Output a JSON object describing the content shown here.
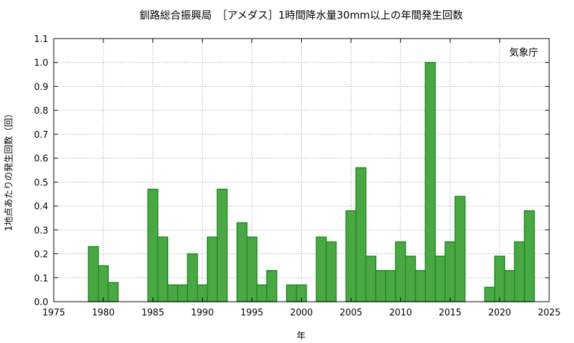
{
  "chart_data": {
    "type": "bar",
    "title": "釧路総合振興局　［アメダス］1時間降水量30mm以上の年間発生回数",
    "xlabel": "年",
    "ylabel": "1地点あたりの発生回数（回）",
    "source_note": "気象庁",
    "xlim": [
      1975,
      2025
    ],
    "ylim": [
      0,
      1.1
    ],
    "x_ticks": [
      "1975",
      "1980",
      "1985",
      "1990",
      "1995",
      "2000",
      "2005",
      "2010",
      "2015",
      "2020",
      "2025"
    ],
    "y_ticks": [
      "0.0",
      "0.1",
      "0.2",
      "0.3",
      "0.4",
      "0.5",
      "0.6",
      "0.7",
      "0.8",
      "0.9",
      "1.0",
      "1.1"
    ],
    "grid": true,
    "bar_color": "#4aa844",
    "bar_edge_color": "#1e8c1e",
    "x": [
      1979,
      1980,
      1981,
      1985,
      1986,
      1987,
      1988,
      1989,
      1990,
      1991,
      1992,
      1994,
      1995,
      1996,
      1997,
      1999,
      2000,
      2002,
      2003,
      2005,
      2006,
      2007,
      2008,
      2009,
      2010,
      2011,
      2012,
      2013,
      2014,
      2015,
      2016,
      2019,
      2020,
      2021,
      2022,
      2023
    ],
    "values": [
      0.23,
      0.15,
      0.08,
      0.47,
      0.27,
      0.07,
      0.07,
      0.2,
      0.07,
      0.27,
      0.47,
      0.33,
      0.27,
      0.07,
      0.13,
      0.07,
      0.07,
      0.27,
      0.25,
      0.38,
      0.56,
      0.19,
      0.13,
      0.13,
      0.25,
      0.19,
      0.13,
      1.0,
      0.19,
      0.25,
      0.44,
      0.06,
      0.19,
      0.13,
      0.25,
      0.38
    ]
  }
}
